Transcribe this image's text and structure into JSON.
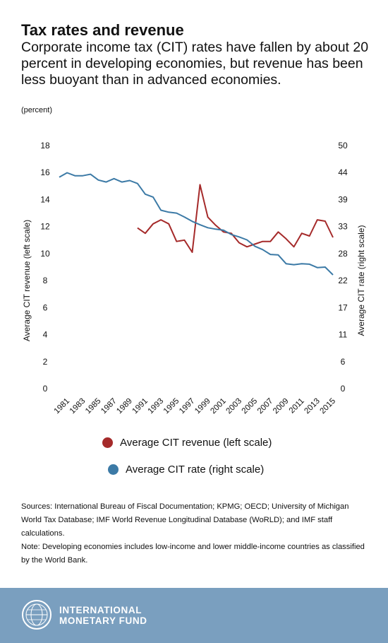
{
  "header": {
    "title": "Tax rates and revenue",
    "subtitle": "Corporate income tax (CIT) rates have fallen by about 20 percent in developing economies, but revenue has been less buoyant than in advanced economies.",
    "units": "(percent)"
  },
  "chart_data": {
    "type": "line",
    "ylabel_left": "Average CIT revenue (left scale)",
    "ylabel_right": "Average CIT rate (right scale)",
    "y_left": {
      "ylim": [
        0,
        18
      ],
      "ticks": [
        "0",
        "2",
        "4",
        "6",
        "8",
        "10",
        "12",
        "14",
        "16",
        "18"
      ]
    },
    "y_right": {
      "ylim": [
        0,
        50
      ],
      "ticks": [
        "0",
        "6",
        "11",
        "17",
        "22",
        "28",
        "33",
        "39",
        "44",
        "50"
      ]
    },
    "x_ticks": [
      "1981",
      "1983",
      "1985",
      "1987",
      "1989",
      "1991",
      "1993",
      "1995",
      "1997",
      "1999",
      "2001",
      "2003",
      "2005",
      "2007",
      "2009",
      "2011",
      "2013",
      "2015"
    ],
    "grid": false,
    "series": [
      {
        "name": "Average CIT revenue (left scale)",
        "axis": "left",
        "color": "#a52a2a",
        "x": [
          1990,
          1991,
          1992,
          1993,
          1994,
          1995,
          1996,
          1997,
          1998,
          1999,
          2000,
          2001,
          2002,
          2003,
          2004,
          2005,
          2006,
          2007,
          2008,
          2009,
          2010,
          2011,
          2012,
          2013,
          2014,
          2015
        ],
        "y": [
          11.9,
          11.5,
          12.2,
          12.5,
          12.2,
          10.9,
          11.0,
          10.1,
          15.1,
          12.7,
          12.1,
          11.6,
          11.5,
          10.8,
          10.5,
          10.7,
          10.9,
          10.9,
          11.6,
          11.1,
          10.5,
          11.5,
          11.3,
          12.5,
          12.4,
          11.2
        ]
      },
      {
        "name": "Average CIT rate (right scale)",
        "axis": "right",
        "color": "#3c7aa6",
        "x": [
          1980,
          1981,
          1982,
          1983,
          1984,
          1985,
          1986,
          1987,
          1988,
          1989,
          1990,
          1991,
          1992,
          1993,
          1994,
          1995,
          1996,
          1997,
          1998,
          1999,
          2000,
          2001,
          2002,
          2003,
          2004,
          2005,
          2006,
          2007,
          2008,
          2009,
          2010,
          2011,
          2012,
          2013,
          2014,
          2015
        ],
        "y": [
          43.5,
          44.4,
          43.8,
          43.8,
          44.1,
          42.9,
          42.5,
          43.2,
          42.5,
          42.8,
          42.2,
          40.0,
          39.4,
          36.7,
          36.3,
          36.1,
          35.3,
          34.4,
          33.7,
          33.1,
          32.8,
          32.6,
          31.7,
          31.2,
          30.6,
          29.3,
          28.6,
          27.6,
          27.5,
          25.7,
          25.5,
          25.7,
          25.6,
          24.9,
          25.0,
          23.4
        ]
      }
    ]
  },
  "notes": {
    "sources": "Sources: International Bureau of Fiscal Documentation; KPMG; OECD; University of Michigan World Tax Database; IMF World Revenue Longitudinal Database (WoRLD); and IMF staff calculations.",
    "note": "Note: Developing economies includes low-income and lower middle-income countries as classified by the World Bank."
  },
  "footer": {
    "org_line1": "INTERNATIONAL",
    "org_line2": "MONETARY FUND",
    "logo_icon": "imf-seal-icon",
    "background": "#7a9fbf"
  }
}
